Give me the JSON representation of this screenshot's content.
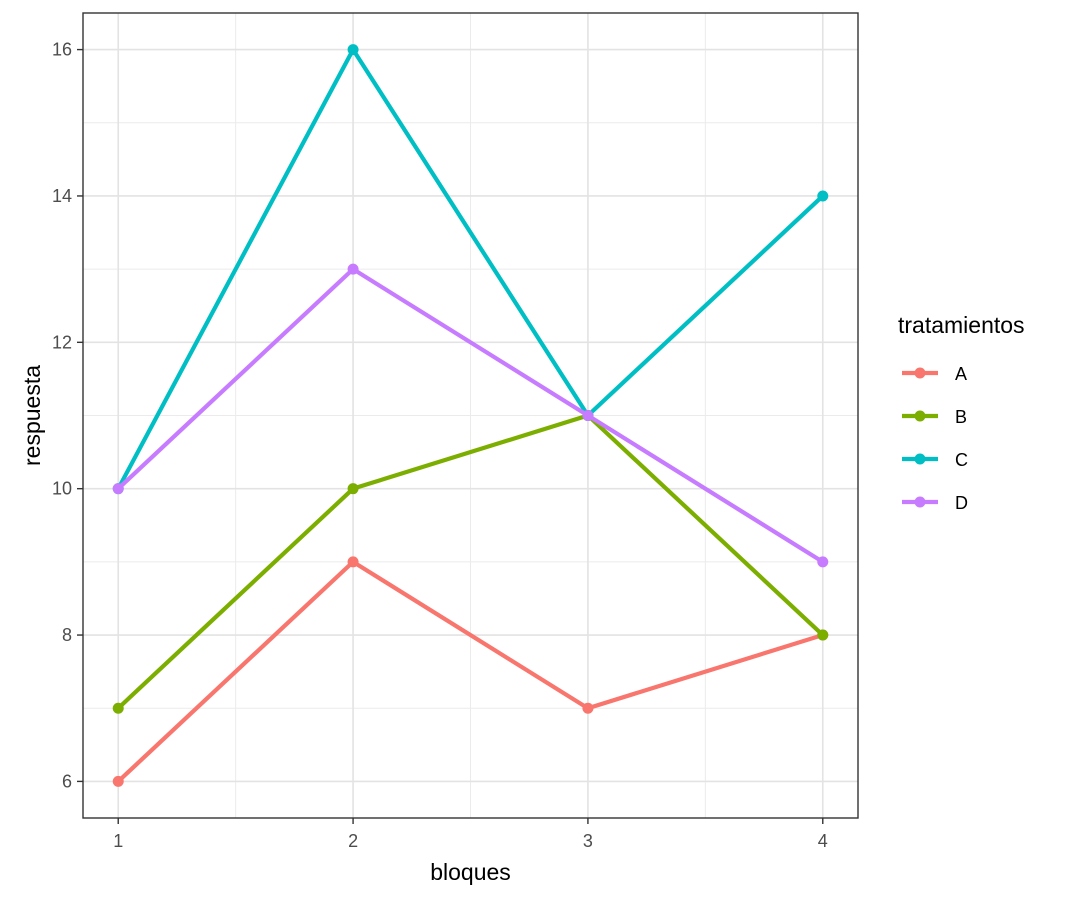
{
  "chart_data": {
    "type": "line",
    "xlabel": "bloques",
    "ylabel": "respuesta",
    "x": [
      1,
      2,
      3,
      4
    ],
    "x_ticks": [
      "1",
      "2",
      "3",
      "4"
    ],
    "y_ticks": [
      "6",
      "8",
      "10",
      "12",
      "14",
      "16"
    ],
    "xlim": [
      0.85,
      4.15
    ],
    "ylim": [
      5.5,
      16.5
    ],
    "grid": true,
    "legend": {
      "title": "tratamientos",
      "placement": "right"
    },
    "series": [
      {
        "name": "A",
        "color": "#F8766D",
        "values": [
          6,
          9,
          7,
          8
        ]
      },
      {
        "name": "B",
        "color": "#7CAE00",
        "values": [
          7,
          10,
          11,
          8
        ]
      },
      {
        "name": "C",
        "color": "#00BFC4",
        "values": [
          10,
          16,
          11,
          14
        ]
      },
      {
        "name": "D",
        "color": "#C77CFF",
        "values": [
          10,
          13,
          11,
          9
        ]
      }
    ]
  }
}
